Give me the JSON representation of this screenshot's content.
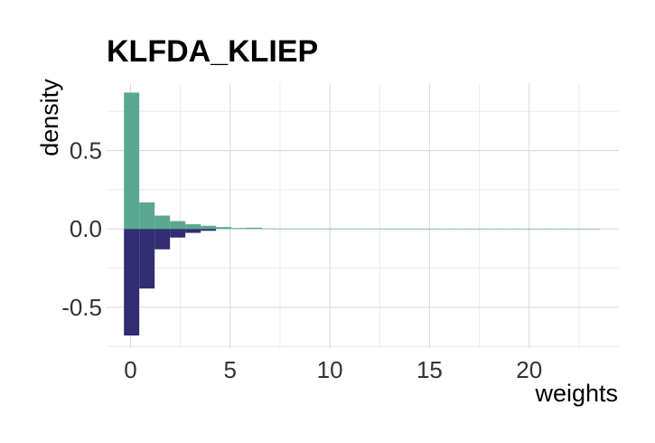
{
  "chart_data": {
    "type": "bar",
    "title": "KLFDA_KLIEP",
    "xlabel": "weights",
    "ylabel": "density",
    "xlim": [
      -1.2,
      24.5
    ],
    "ylim": [
      -0.76,
      0.93
    ],
    "x_ticks": [
      0,
      5,
      10,
      15,
      20
    ],
    "x_tick_labels": [
      "0",
      "5",
      "10",
      "15",
      "20"
    ],
    "y_ticks": [
      -0.5,
      0.0,
      0.5
    ],
    "y_tick_labels": [
      "-0.5",
      "0.0",
      "0.5"
    ],
    "grid": true,
    "legend": "none",
    "bin_width": 0.77,
    "series": [
      {
        "direction": "up",
        "color": "#5aa88f",
        "bins": [
          {
            "x0": -0.33,
            "value": 0.87
          },
          {
            "x0": 0.44,
            "value": 0.17
          },
          {
            "x0": 1.21,
            "value": 0.085
          },
          {
            "x0": 1.98,
            "value": 0.05
          },
          {
            "x0": 2.75,
            "value": 0.03
          },
          {
            "x0": 3.52,
            "value": 0.02
          },
          {
            "x0": 4.29,
            "value": 0.012
          },
          {
            "x0": 5.06,
            "value": 0.006
          },
          {
            "x0": 5.83,
            "value": 0.008
          },
          {
            "x0": 6.6,
            "value": 0.003
          },
          {
            "x0": 7.37,
            "value": 0.002
          },
          {
            "x0": 8.14,
            "value": 0.002
          },
          {
            "x0": 8.91,
            "value": 0.002
          },
          {
            "x0": 9.68,
            "value": 0.002
          },
          {
            "x0": 10.45,
            "value": 0.002
          },
          {
            "x0": 11.22,
            "value": 0.002
          },
          {
            "x0": 11.99,
            "value": 0.002
          },
          {
            "x0": 12.76,
            "value": 0.001
          },
          {
            "x0": 13.53,
            "value": 0.001
          },
          {
            "x0": 14.3,
            "value": 0.001
          },
          {
            "x0": 15.07,
            "value": 0.001
          },
          {
            "x0": 15.84,
            "value": 0.001
          },
          {
            "x0": 16.61,
            "value": 0.001
          },
          {
            "x0": 17.38,
            "value": 0.001
          },
          {
            "x0": 18.15,
            "value": 0.001
          },
          {
            "x0": 18.92,
            "value": 0.001
          },
          {
            "x0": 19.69,
            "value": 0.001
          },
          {
            "x0": 20.46,
            "value": 0.001
          },
          {
            "x0": 21.23,
            "value": 0.001
          },
          {
            "x0": 22.0,
            "value": 0.001
          },
          {
            "x0": 22.77,
            "value": 0.001
          }
        ]
      },
      {
        "direction": "down",
        "color": "#322c71",
        "bins": [
          {
            "x0": -0.33,
            "value": 0.68
          },
          {
            "x0": 0.44,
            "value": 0.38
          },
          {
            "x0": 1.21,
            "value": 0.13
          },
          {
            "x0": 1.98,
            "value": 0.055
          },
          {
            "x0": 2.75,
            "value": 0.025
          },
          {
            "x0": 3.52,
            "value": 0.012
          }
        ]
      }
    ]
  }
}
